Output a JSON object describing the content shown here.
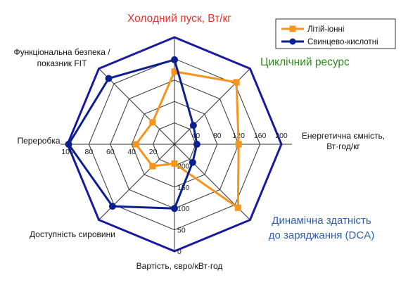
{
  "chart_data": {
    "type": "radar",
    "axes": [
      {
        "label": "Холодний пуск, Вт/кг",
        "color": "#e8322b",
        "style": "highlight"
      },
      {
        "label": "Циклічний ресурс",
        "color": "#2f8a1f",
        "style": "highlight"
      },
      {
        "label_lines": [
          "Енергетична ємність,",
          "Вт·год/кг"
        ],
        "color": "#111111",
        "style": "normal"
      },
      {
        "label_lines": [
          "Динамічна здатність",
          "до заряджання (DCA)"
        ],
        "color": "#2f5fa8",
        "style": "highlight"
      },
      {
        "label": "Вартість, євро/кВт·год",
        "color": "#111111",
        "style": "normal"
      },
      {
        "label": "Доступність сировини",
        "color": "#111111",
        "style": "normal"
      },
      {
        "label": "Переробка",
        "color": "#111111",
        "style": "normal"
      },
      {
        "label_lines": [
          "Функціональна безпека /",
          "показник FIT"
        ],
        "color": "#111111",
        "style": "normal"
      }
    ],
    "scale_levels": 5,
    "tick_sets": [
      {
        "axis_index": 2,
        "labels": [
          "40",
          "80",
          "120",
          "160",
          "200"
        ]
      },
      {
        "axis_index": 4,
        "labels": [
          "200",
          "150",
          "100",
          "50",
          "0"
        ]
      },
      {
        "axis_index": 6,
        "labels": [
          "20",
          "40",
          "60",
          "80",
          "100"
        ]
      }
    ],
    "series": [
      {
        "name": "Літій-іонні",
        "color": "#f7941d",
        "marker": "square",
        "values": [
          0.68,
          0.82,
          0.6,
          0.84,
          0.18,
          0.29,
          0.36,
          0.29
        ]
      },
      {
        "name": "Свинцево-кислотні",
        "color": "#0b1f8f",
        "marker": "circle",
        "values": [
          0.79,
          0.25,
          0.21,
          0.24,
          0.6,
          0.82,
          0.99,
          0.87
        ]
      }
    ],
    "legend": {
      "position": "top-right"
    },
    "grid": true
  }
}
